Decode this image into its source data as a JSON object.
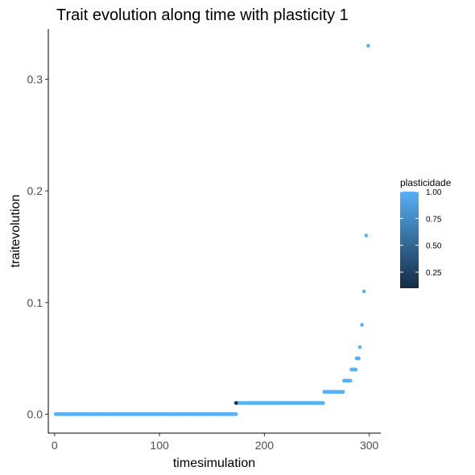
{
  "chart_data": {
    "type": "scatter",
    "title": "Trait evolution along time with plasticity 1",
    "xlabel": "timesimulation",
    "ylabel": "traitevolution",
    "xlim": [
      -6,
      311
    ],
    "ylim": [
      -0.017,
      0.345
    ],
    "x_ticks": [
      0,
      100,
      200,
      300
    ],
    "y_ticks": [
      0.0,
      0.1,
      0.2,
      0.3
    ],
    "y_tick_labels": [
      "0.0",
      "0.1",
      "0.2",
      "0.3"
    ],
    "grid": false,
    "legend": {
      "title": "plasticidade",
      "placement": "right",
      "type": "colorbar",
      "range": [
        0.1,
        1.0
      ],
      "ticks": [
        0.25,
        0.5,
        0.75,
        1.0
      ],
      "tick_labels": [
        "0.25",
        "0.50",
        "0.75",
        "1.00"
      ],
      "low_color": "#132B43",
      "high_color": "#56B1F7"
    },
    "segments": [
      {
        "x_start": 1,
        "x_end": 173,
        "y": 0.0,
        "plasticity": 1.0
      },
      {
        "x_start": 174,
        "x_end": 256,
        "y": 0.01,
        "plasticity": 1.0
      },
      {
        "x_start": 257,
        "x_end": 275,
        "y": 0.02,
        "plasticity": 1.0
      },
      {
        "x_start": 276,
        "x_end": 282,
        "y": 0.03,
        "plasticity": 1.0
      },
      {
        "x_start": 283,
        "x_end": 287,
        "y": 0.04,
        "plasticity": 1.0
      },
      {
        "x_start": 288,
        "x_end": 290,
        "y": 0.05,
        "plasticity": 1.0
      }
    ],
    "points": [
      {
        "x": 173,
        "y": 0.01,
        "plasticity": 0.1
      },
      {
        "x": 291,
        "y": 0.06,
        "plasticity": 1.0
      },
      {
        "x": 293,
        "y": 0.08,
        "plasticity": 1.0
      },
      {
        "x": 295,
        "y": 0.11,
        "plasticity": 1.0
      },
      {
        "x": 297,
        "y": 0.16,
        "plasticity": 1.0
      },
      {
        "x": 299,
        "y": 0.33,
        "plasticity": 1.0
      }
    ]
  }
}
